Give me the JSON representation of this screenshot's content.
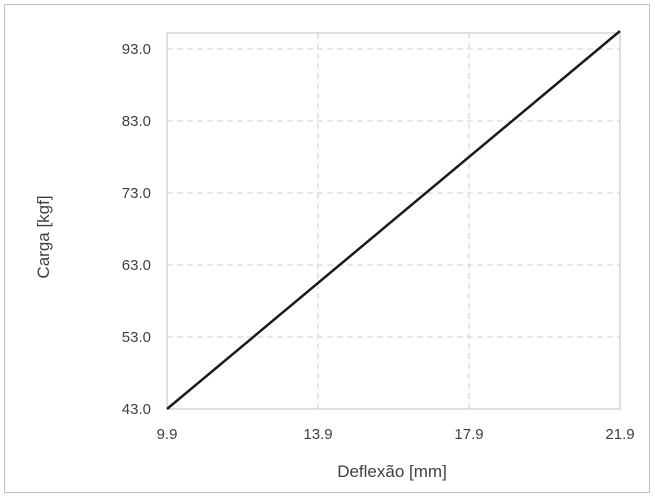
{
  "chart_data": {
    "type": "line",
    "xlabel": "Deflexão [mm]",
    "ylabel": "Carga [kgf]",
    "xlim": [
      9.9,
      21.9
    ],
    "ylim": [
      43.0,
      93.0
    ],
    "x_ticks": [
      "9.9",
      "13.9",
      "17.9",
      "21.9"
    ],
    "y_ticks": [
      "43.0",
      "53.0",
      "63.0",
      "73.0",
      "83.0",
      "93.0"
    ],
    "x_tick_values": [
      9.9,
      13.9,
      17.9,
      21.9
    ],
    "y_tick_values": [
      43.0,
      53.0,
      63.0,
      73.0,
      83.0,
      93.0
    ],
    "grid": true,
    "series": [
      {
        "x": [
          9.9,
          21.9
        ],
        "y": [
          43.0,
          95.5
        ],
        "color": "#1a1a1a"
      }
    ]
  }
}
